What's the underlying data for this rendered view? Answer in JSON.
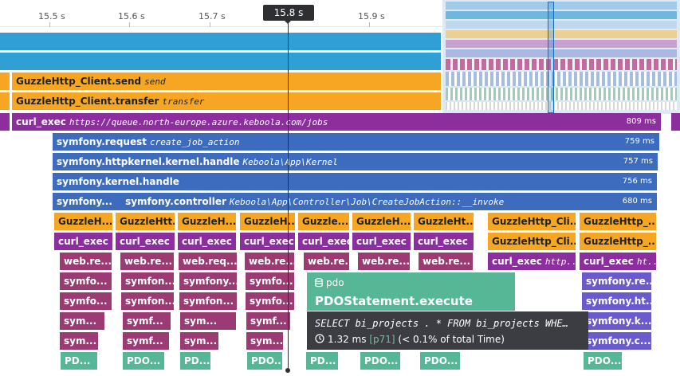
{
  "ruler": {
    "ticks": [
      "15.5 s",
      "15.6 s",
      "15.7 s",
      "15.8 s",
      "15.9 s"
    ],
    "cursor_time": "15.8 s"
  },
  "colors": {
    "blue": "#2f9fd6",
    "orange": "#f6a623",
    "purple": "#8c2e9e",
    "darkblue": "#3d6bbd",
    "indigo": "#6a5acd",
    "rose": "#9b3a73",
    "green": "#55b795"
  },
  "rows": {
    "r3": {
      "name": "GuzzleHttp_Client.send",
      "sub": "send"
    },
    "r4": {
      "name": "GuzzleHttp_Client.transfer",
      "sub": "transfer"
    },
    "r5": {
      "name": "curl_exec",
      "sub": "https://queue.north-europe.azure.keboola.com/jobs",
      "dur": "809 ms"
    },
    "r6": {
      "name": "symfony.request",
      "sub": "create_job_action",
      "dur": "759 ms"
    },
    "r7": {
      "name": "symfony.httpkernel.kernel.handle",
      "sub": "Keboola\\App\\Kernel",
      "dur": "757 ms"
    },
    "r8": {
      "name": "symfony.kernel.handle",
      "dur": "756 ms"
    },
    "r9": {
      "a": "symfony...",
      "name": "symfony.controller",
      "sub": "Keboola\\App\\Controller\\Job\\CreateJobAction::__invoke",
      "dur": "680 ms"
    }
  },
  "cells": {
    "guzzle": [
      "GuzzleH...",
      "GuzzleHtt...",
      "GuzzleH...",
      "GuzzleH...",
      "Guzzle...",
      "GuzzleH...",
      "GuzzleHt...",
      "GuzzleHttp_Cli...",
      "GuzzleHttp_..."
    ],
    "curl": [
      "curl_exec",
      "curl_exec",
      "curl_exec",
      "curl_exec",
      "curl_exec",
      "curl_exec",
      "curl_exec",
      "GuzzleHttp_Cli...",
      "GuzzleHttp_..."
    ],
    "web": [
      "web.re...",
      "web.re...",
      "web.req...",
      "web.re...",
      "web.re...",
      "web.re...",
      "web.re...",
      "curl_exec",
      "curl_exec"
    ],
    "web_sub": [
      "http...",
      "ht..."
    ],
    "sym1": [
      "symfo...",
      "symfon...",
      "symfony...",
      "symfo...",
      "symfony.re..."
    ],
    "sym2": [
      "symfo...",
      "symfon...",
      "symfon...",
      "symfo...",
      "symfony.ht..."
    ],
    "sym3": [
      "sym...",
      "symf...",
      "sym...",
      "symf...",
      "symfony.k..."
    ],
    "sym4": [
      "sym...",
      "symf...",
      "sym...",
      "sym...",
      "symfony.c..."
    ],
    "pdo": [
      "PD...",
      "PDO...",
      "PD...",
      "PDO...",
      "PD...",
      "PDO...",
      "PDO...",
      "PDO..."
    ]
  },
  "tooltip": {
    "icon": "database-icon",
    "kind": "pdo",
    "title": "PDOStatement.execute",
    "query": "SELECT bi_projects . * FROM bi_projects WHE…",
    "duration": "1.32 ms",
    "percentile": "[p71]",
    "share": "(< 0.1% of total Time)"
  }
}
